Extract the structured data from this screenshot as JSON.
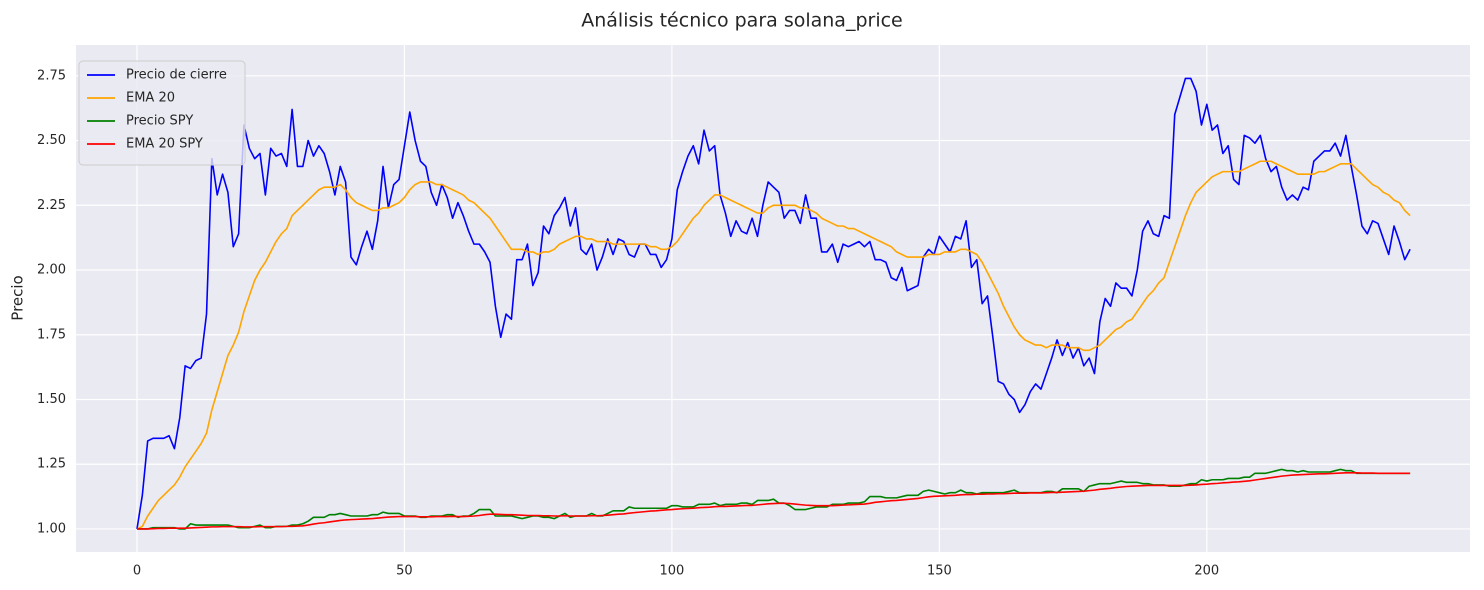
{
  "chart_data": {
    "type": "line",
    "title": "Análisis técnico para solana_price",
    "ylabel": "Precio",
    "grid": true,
    "legend": "upper left",
    "xlim": [
      -11.4,
      249.2
    ],
    "xticks": [
      0,
      50,
      100,
      150,
      200
    ],
    "ylim": [
      0.911,
      2.869
    ],
    "yticks": [
      {
        "value": 1.0,
        "label": "1.00"
      },
      {
        "value": 1.25,
        "label": "1.25"
      },
      {
        "value": 1.5,
        "label": "1.50"
      },
      {
        "value": 1.75,
        "label": "1.75"
      },
      {
        "value": 2.0,
        "label": "2.00"
      },
      {
        "value": 2.25,
        "label": "2.25"
      },
      {
        "value": 2.5,
        "label": "2.50"
      },
      {
        "value": 2.75,
        "label": "2.75"
      }
    ],
    "x": [
      0,
      1,
      2,
      3,
      4,
      5,
      6,
      7,
      8,
      9,
      10,
      11,
      12,
      13,
      14,
      15,
      16,
      17,
      18,
      19,
      20,
      21,
      22,
      23,
      24,
      25,
      26,
      27,
      28,
      29,
      30,
      31,
      32,
      33,
      34,
      35,
      36,
      37,
      38,
      39,
      40,
      41,
      42,
      43,
      44,
      45,
      46,
      47,
      48,
      49,
      50,
      51,
      52,
      53,
      54,
      55,
      56,
      57,
      58,
      59,
      60,
      61,
      62,
      63,
      64,
      65,
      66,
      67,
      68,
      69,
      70,
      71,
      72,
      73,
      74,
      75,
      76,
      77,
      78,
      79,
      80,
      81,
      82,
      83,
      84,
      85,
      86,
      87,
      88,
      89,
      90,
      91,
      92,
      93,
      94,
      95,
      96,
      97,
      98,
      99,
      100,
      101,
      102,
      103,
      104,
      105,
      106,
      107,
      108,
      109,
      110,
      111,
      112,
      113,
      114,
      115,
      116,
      117,
      118,
      119,
      120,
      121,
      122,
      123,
      124,
      125,
      126,
      127,
      128,
      129,
      130,
      131,
      132,
      133,
      134,
      135,
      136,
      137,
      138,
      139,
      140,
      141,
      142,
      143,
      144,
      145,
      146,
      147,
      148,
      149,
      150,
      151,
      152,
      153,
      154,
      155,
      156,
      157,
      158,
      159,
      160,
      161,
      162,
      163,
      164,
      165,
      166,
      167,
      168,
      169,
      170,
      171,
      172,
      173,
      174,
      175,
      176,
      177,
      178,
      179,
      180,
      181,
      182,
      183,
      184,
      185,
      186,
      187,
      188,
      189,
      190,
      191,
      192,
      193,
      194,
      195,
      196,
      197,
      198,
      199,
      200,
      201,
      202,
      203,
      204,
      205,
      206,
      207,
      208,
      209,
      210,
      211,
      212,
      213,
      214,
      215,
      216,
      217,
      218,
      219,
      220,
      221,
      222,
      223,
      224,
      225,
      226,
      227,
      228,
      229,
      230,
      231,
      232,
      233,
      234,
      235,
      236,
      237,
      238
    ],
    "series": [
      {
        "name": "Precio de cierre",
        "color": "#0000ff",
        "values": [
          1.0,
          1.13,
          1.34,
          1.35,
          1.35,
          1.35,
          1.36,
          1.31,
          1.43,
          1.63,
          1.62,
          1.65,
          1.66,
          1.83,
          2.43,
          2.29,
          2.37,
          2.3,
          2.09,
          2.14,
          2.56,
          2.47,
          2.43,
          2.45,
          2.29,
          2.47,
          2.44,
          2.45,
          2.4,
          2.62,
          2.4,
          2.4,
          2.5,
          2.44,
          2.48,
          2.45,
          2.38,
          2.29,
          2.4,
          2.34,
          2.05,
          2.02,
          2.09,
          2.15,
          2.08,
          2.19,
          2.4,
          2.24,
          2.33,
          2.35,
          2.48,
          2.61,
          2.5,
          2.42,
          2.4,
          2.3,
          2.25,
          2.33,
          2.28,
          2.2,
          2.26,
          2.21,
          2.15,
          2.1,
          2.1,
          2.07,
          2.03,
          1.86,
          1.74,
          1.83,
          1.81,
          2.04,
          2.04,
          2.1,
          1.94,
          1.99,
          2.17,
          2.14,
          2.21,
          2.24,
          2.28,
          2.17,
          2.24,
          2.08,
          2.06,
          2.1,
          2.0,
          2.05,
          2.12,
          2.06,
          2.12,
          2.11,
          2.06,
          2.05,
          2.1,
          2.1,
          2.06,
          2.06,
          2.01,
          2.04,
          2.12,
          2.31,
          2.38,
          2.44,
          2.48,
          2.41,
          2.54,
          2.46,
          2.48,
          2.29,
          2.22,
          2.13,
          2.19,
          2.15,
          2.14,
          2.2,
          2.13,
          2.25,
          2.34,
          2.32,
          2.3,
          2.2,
          2.23,
          2.23,
          2.18,
          2.29,
          2.2,
          2.2,
          2.07,
          2.07,
          2.1,
          2.03,
          2.1,
          2.09,
          2.1,
          2.11,
          2.09,
          2.11,
          2.04,
          2.04,
          2.03,
          1.97,
          1.96,
          2.01,
          1.92,
          1.93,
          1.94,
          2.05,
          2.08,
          2.06,
          2.13,
          2.1,
          2.07,
          2.13,
          2.12,
          2.19,
          2.01,
          2.04,
          1.87,
          1.9,
          1.74,
          1.57,
          1.56,
          1.52,
          1.5,
          1.45,
          1.48,
          1.53,
          1.56,
          1.54,
          1.6,
          1.66,
          1.73,
          1.67,
          1.72,
          1.66,
          1.7,
          1.63,
          1.66,
          1.6,
          1.8,
          1.89,
          1.86,
          1.95,
          1.93,
          1.93,
          1.9,
          2.0,
          2.15,
          2.19,
          2.14,
          2.13,
          2.21,
          2.2,
          2.6,
          2.67,
          2.74,
          2.74,
          2.69,
          2.56,
          2.64,
          2.54,
          2.56,
          2.45,
          2.48,
          2.35,
          2.33,
          2.52,
          2.51,
          2.49,
          2.52,
          2.43,
          2.38,
          2.4,
          2.32,
          2.27,
          2.29,
          2.27,
          2.32,
          2.31,
          2.42,
          2.44,
          2.46,
          2.46,
          2.49,
          2.44,
          2.52,
          2.4,
          2.29,
          2.17,
          2.14,
          2.19,
          2.18,
          2.12,
          2.06,
          2.17,
          2.11,
          2.04,
          2.08
        ]
      },
      {
        "name": "EMA 20",
        "color": "#ffa500",
        "values": [
          1.0,
          1.01,
          1.05,
          1.08,
          1.11,
          1.13,
          1.15,
          1.17,
          1.2,
          1.24,
          1.27,
          1.3,
          1.33,
          1.37,
          1.46,
          1.53,
          1.6,
          1.67,
          1.71,
          1.76,
          1.84,
          1.9,
          1.96,
          2.0,
          2.03,
          2.07,
          2.11,
          2.14,
          2.16,
          2.21,
          2.23,
          2.25,
          2.27,
          2.29,
          2.31,
          2.32,
          2.32,
          2.32,
          2.33,
          2.31,
          2.28,
          2.26,
          2.25,
          2.24,
          2.23,
          2.23,
          2.24,
          2.24,
          2.25,
          2.26,
          2.28,
          2.31,
          2.33,
          2.34,
          2.34,
          2.34,
          2.33,
          2.33,
          2.32,
          2.31,
          2.3,
          2.29,
          2.27,
          2.26,
          2.24,
          2.22,
          2.2,
          2.17,
          2.14,
          2.11,
          2.08,
          2.08,
          2.08,
          2.07,
          2.07,
          2.06,
          2.07,
          2.07,
          2.08,
          2.1,
          2.11,
          2.12,
          2.13,
          2.13,
          2.12,
          2.12,
          2.11,
          2.11,
          2.11,
          2.1,
          2.1,
          2.1,
          2.1,
          2.1,
          2.1,
          2.1,
          2.09,
          2.09,
          2.08,
          2.08,
          2.09,
          2.11,
          2.14,
          2.17,
          2.2,
          2.22,
          2.25,
          2.27,
          2.29,
          2.29,
          2.28,
          2.27,
          2.26,
          2.25,
          2.24,
          2.23,
          2.22,
          2.22,
          2.24,
          2.25,
          2.25,
          2.25,
          2.25,
          2.25,
          2.24,
          2.24,
          2.23,
          2.22,
          2.2,
          2.19,
          2.18,
          2.17,
          2.17,
          2.16,
          2.16,
          2.15,
          2.14,
          2.13,
          2.12,
          2.11,
          2.1,
          2.09,
          2.07,
          2.06,
          2.05,
          2.05,
          2.05,
          2.05,
          2.06,
          2.06,
          2.06,
          2.07,
          2.07,
          2.07,
          2.08,
          2.08,
          2.07,
          2.06,
          2.03,
          1.99,
          1.95,
          1.91,
          1.86,
          1.82,
          1.78,
          1.75,
          1.73,
          1.72,
          1.71,
          1.71,
          1.7,
          1.71,
          1.71,
          1.71,
          1.7,
          1.7,
          1.7,
          1.69,
          1.69,
          1.7,
          1.71,
          1.73,
          1.75,
          1.77,
          1.78,
          1.8,
          1.81,
          1.84,
          1.87,
          1.9,
          1.92,
          1.95,
          1.97,
          2.03,
          2.09,
          2.15,
          2.21,
          2.26,
          2.3,
          2.32,
          2.34,
          2.36,
          2.37,
          2.38,
          2.38,
          2.38,
          2.38,
          2.39,
          2.4,
          2.41,
          2.42,
          2.42,
          2.42,
          2.41,
          2.4,
          2.39,
          2.38,
          2.37,
          2.37,
          2.37,
          2.37,
          2.38,
          2.38,
          2.39,
          2.4,
          2.41,
          2.41,
          2.41,
          2.39,
          2.37,
          2.35,
          2.33,
          2.32,
          2.3,
          2.29,
          2.27,
          2.26,
          2.23,
          2.21
        ]
      },
      {
        "name": "Precio SPY",
        "color": "#008000",
        "values": [
          1.0,
          1.0,
          1.0,
          1.005,
          1.005,
          1.005,
          1.005,
          1.005,
          1.0,
          1.0,
          1.02,
          1.015,
          1.015,
          1.015,
          1.015,
          1.015,
          1.015,
          1.015,
          1.01,
          1.005,
          1.005,
          1.005,
          1.01,
          1.015,
          1.005,
          1.005,
          1.01,
          1.01,
          1.01,
          1.015,
          1.015,
          1.02,
          1.03,
          1.045,
          1.045,
          1.045,
          1.055,
          1.055,
          1.06,
          1.055,
          1.05,
          1.05,
          1.05,
          1.05,
          1.055,
          1.055,
          1.065,
          1.06,
          1.06,
          1.06,
          1.05,
          1.05,
          1.05,
          1.045,
          1.045,
          1.05,
          1.05,
          1.05,
          1.055,
          1.055,
          1.045,
          1.05,
          1.05,
          1.06,
          1.075,
          1.075,
          1.075,
          1.05,
          1.05,
          1.05,
          1.05,
          1.045,
          1.04,
          1.045,
          1.05,
          1.05,
          1.045,
          1.045,
          1.04,
          1.05,
          1.06,
          1.045,
          1.05,
          1.05,
          1.05,
          1.06,
          1.05,
          1.05,
          1.06,
          1.07,
          1.07,
          1.07,
          1.085,
          1.08,
          1.08,
          1.08,
          1.08,
          1.08,
          1.08,
          1.08,
          1.09,
          1.09,
          1.085,
          1.085,
          1.085,
          1.095,
          1.095,
          1.095,
          1.1,
          1.09,
          1.095,
          1.095,
          1.095,
          1.1,
          1.1,
          1.095,
          1.11,
          1.11,
          1.11,
          1.115,
          1.1,
          1.1,
          1.09,
          1.075,
          1.075,
          1.075,
          1.08,
          1.085,
          1.085,
          1.085,
          1.095,
          1.095,
          1.095,
          1.1,
          1.1,
          1.1,
          1.105,
          1.125,
          1.125,
          1.125,
          1.12,
          1.12,
          1.12,
          1.125,
          1.13,
          1.13,
          1.13,
          1.145,
          1.15,
          1.145,
          1.14,
          1.135,
          1.14,
          1.14,
          1.15,
          1.14,
          1.14,
          1.135,
          1.14,
          1.14,
          1.14,
          1.14,
          1.14,
          1.145,
          1.15,
          1.14,
          1.14,
          1.14,
          1.14,
          1.14,
          1.145,
          1.145,
          1.14,
          1.155,
          1.155,
          1.155,
          1.155,
          1.145,
          1.165,
          1.17,
          1.175,
          1.175,
          1.175,
          1.18,
          1.185,
          1.18,
          1.18,
          1.18,
          1.175,
          1.175,
          1.17,
          1.17,
          1.17,
          1.165,
          1.165,
          1.165,
          1.17,
          1.175,
          1.175,
          1.19,
          1.185,
          1.19,
          1.19,
          1.19,
          1.195,
          1.195,
          1.195,
          1.2,
          1.2,
          1.215,
          1.215,
          1.215,
          1.22,
          1.225,
          1.23,
          1.225,
          1.225,
          1.22,
          1.225,
          1.22,
          1.22,
          1.22,
          1.22,
          1.22,
          1.225,
          1.23,
          1.225,
          1.225,
          1.215,
          1.215,
          1.215,
          1.215,
          1.215,
          1.215,
          1.215,
          1.215,
          1.215,
          1.215,
          1.215
        ]
      },
      {
        "name": "EMA 20 SPY",
        "color": "#ff0000",
        "values": [
          1.0,
          1.0,
          1.0,
          1.001,
          1.002,
          1.002,
          1.003,
          1.003,
          1.003,
          1.003,
          1.004,
          1.005,
          1.006,
          1.007,
          1.008,
          1.008,
          1.009,
          1.009,
          1.009,
          1.009,
          1.008,
          1.008,
          1.008,
          1.009,
          1.009,
          1.009,
          1.009,
          1.009,
          1.01,
          1.01,
          1.011,
          1.012,
          1.015,
          1.019,
          1.022,
          1.024,
          1.027,
          1.03,
          1.033,
          1.035,
          1.036,
          1.037,
          1.038,
          1.039,
          1.04,
          1.042,
          1.044,
          1.046,
          1.047,
          1.048,
          1.048,
          1.048,
          1.048,
          1.047,
          1.047,
          1.047,
          1.048,
          1.048,
          1.048,
          1.049,
          1.048,
          1.048,
          1.049,
          1.05,
          1.052,
          1.055,
          1.057,
          1.057,
          1.056,
          1.055,
          1.055,
          1.054,
          1.053,
          1.052,
          1.052,
          1.052,
          1.051,
          1.051,
          1.05,
          1.05,
          1.051,
          1.05,
          1.05,
          1.05,
          1.05,
          1.051,
          1.051,
          1.052,
          1.053,
          1.055,
          1.057,
          1.058,
          1.061,
          1.063,
          1.065,
          1.067,
          1.069,
          1.07,
          1.072,
          1.074,
          1.075,
          1.077,
          1.078,
          1.079,
          1.08,
          1.082,
          1.083,
          1.084,
          1.086,
          1.087,
          1.087,
          1.088,
          1.089,
          1.09,
          1.091,
          1.091,
          1.093,
          1.095,
          1.097,
          1.098,
          1.099,
          1.099,
          1.098,
          1.096,
          1.094,
          1.092,
          1.091,
          1.09,
          1.09,
          1.09,
          1.09,
          1.091,
          1.092,
          1.093,
          1.094,
          1.095,
          1.096,
          1.099,
          1.103,
          1.105,
          1.107,
          1.109,
          1.11,
          1.112,
          1.114,
          1.116,
          1.118,
          1.121,
          1.124,
          1.126,
          1.127,
          1.128,
          1.129,
          1.13,
          1.132,
          1.133,
          1.133,
          1.134,
          1.134,
          1.135,
          1.135,
          1.136,
          1.136,
          1.137,
          1.138,
          1.138,
          1.138,
          1.139,
          1.139,
          1.139,
          1.14,
          1.141,
          1.141,
          1.142,
          1.143,
          1.144,
          1.145,
          1.146,
          1.148,
          1.15,
          1.153,
          1.155,
          1.157,
          1.16,
          1.162,
          1.164,
          1.165,
          1.166,
          1.167,
          1.168,
          1.168,
          1.168,
          1.168,
          1.168,
          1.168,
          1.168,
          1.168,
          1.169,
          1.17,
          1.172,
          1.173,
          1.175,
          1.176,
          1.178,
          1.179,
          1.181,
          1.182,
          1.184,
          1.186,
          1.189,
          1.192,
          1.195,
          1.198,
          1.201,
          1.204,
          1.206,
          1.208,
          1.209,
          1.21,
          1.211,
          1.212,
          1.213,
          1.213,
          1.214,
          1.215,
          1.216,
          1.217,
          1.217,
          1.217,
          1.216,
          1.216,
          1.216,
          1.215,
          1.215,
          1.215,
          1.215,
          1.215,
          1.215,
          1.215
        ]
      }
    ]
  }
}
